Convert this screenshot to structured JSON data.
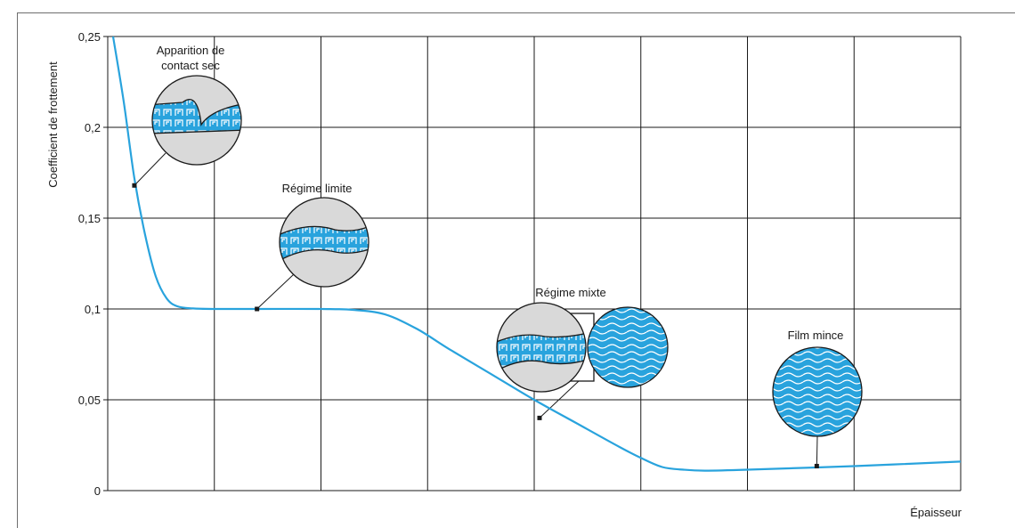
{
  "chart_data": {
    "type": "line",
    "title": "",
    "xlabel": "Épaisseur",
    "ylabel": "Coefficient de frottement",
    "ylim": [
      0,
      0.25
    ],
    "yticks": [
      "0",
      "0,05",
      "0,1",
      "0,15",
      "0,2",
      "0,25"
    ],
    "ytick_values": [
      0,
      0.05,
      0.1,
      0.15,
      0.2,
      0.25
    ],
    "xlim": [
      0,
      8
    ],
    "x_grid_count": 8,
    "grid": true,
    "line_color": "#29a3dd",
    "series": [
      {
        "values_x": [
          0.05,
          0.15,
          0.25,
          0.35,
          0.45,
          0.55,
          0.65,
          0.8,
          1.0,
          1.4,
          2.0,
          2.3,
          2.6,
          2.9,
          3.2,
          3.6,
          4.0,
          4.4,
          4.8,
          5.0,
          5.2,
          5.4,
          5.6,
          6.0,
          7.0,
          8.0
        ],
        "values_y": [
          0.25,
          0.214,
          0.172,
          0.141,
          0.118,
          0.106,
          0.1015,
          0.1003,
          0.1,
          0.1,
          0.1,
          0.0995,
          0.097,
          0.089,
          0.078,
          0.064,
          0.05,
          0.037,
          0.024,
          0.018,
          0.013,
          0.0115,
          0.011,
          0.0115,
          0.0135,
          0.016
        ]
      }
    ],
    "annotations": [
      {
        "label_lines": [
          "Apparition de",
          "contact sec"
        ],
        "point": [
          0.25,
          0.168
        ],
        "inset": "dry-contact"
      },
      {
        "label_lines": [
          "Régime limite"
        ],
        "point": [
          1.4,
          0.1
        ],
        "inset": "boundary"
      },
      {
        "label_lines": [
          "Régime mixte"
        ],
        "point": [
          4.05,
          0.04
        ],
        "inset": "mixed"
      },
      {
        "label_lines": [
          "Film mince"
        ],
        "point": [
          6.65,
          0.0135
        ],
        "inset": "thin-film"
      }
    ]
  },
  "colors": {
    "grid": "#1a1a1a",
    "curve": "#29a3dd",
    "metal": "#d9d9d9",
    "lubricant": "#29a3dd",
    "outline": "#1a1a1a"
  }
}
